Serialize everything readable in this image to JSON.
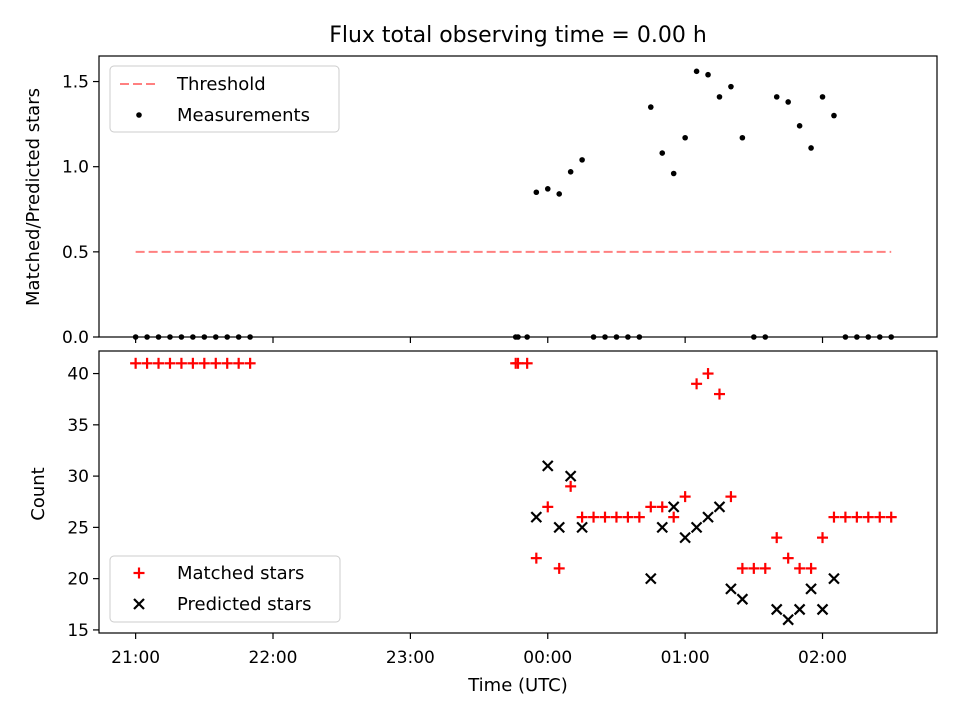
{
  "title": "Flux total observing time = 0.00 h",
  "xlabel": "Time (UTC)",
  "colors": {
    "threshold": "#ff8080",
    "measurements": "#000000",
    "matched": "#ff0000",
    "predicted": "#000000"
  },
  "chart_data": [
    {
      "type": "scatter",
      "ylabel": "Matched/Predicted stars",
      "xlim": [
        "20:44",
        "02:50"
      ],
      "ylim": [
        0,
        1.65
      ],
      "yticks": [
        0.0,
        0.5,
        1.0,
        1.5
      ],
      "ytick_labels": [
        "0.0",
        "0.5",
        "1.0",
        "1.5"
      ],
      "grid": false,
      "legend": {
        "placement": "top-left",
        "entries": [
          "Threshold",
          "Measurements"
        ]
      },
      "threshold": {
        "name": "Threshold",
        "value": 0.5,
        "x": [
          "21:00",
          "02:30"
        ],
        "style": "dashed"
      },
      "series": [
        {
          "name": "Measurements",
          "points": [
            [
              "21:00",
              0
            ],
            [
              "21:05",
              0
            ],
            [
              "21:10",
              0
            ],
            [
              "21:15",
              0
            ],
            [
              "21:20",
              0
            ],
            [
              "21:25",
              0
            ],
            [
              "21:30",
              0
            ],
            [
              "21:35",
              0
            ],
            [
              "21:40",
              0
            ],
            [
              "21:45",
              0
            ],
            [
              "21:50",
              0
            ],
            [
              "23:46",
              0
            ],
            [
              "23:47",
              0
            ],
            [
              "23:51",
              0
            ],
            [
              "23:55",
              0.85
            ],
            [
              "00:00",
              0.87
            ],
            [
              "00:05",
              0.84
            ],
            [
              "00:10",
              0.97
            ],
            [
              "00:15",
              1.04
            ],
            [
              "00:20",
              0
            ],
            [
              "00:25",
              0
            ],
            [
              "00:30",
              0
            ],
            [
              "00:35",
              0
            ],
            [
              "00:40",
              0
            ],
            [
              "00:45",
              1.35
            ],
            [
              "00:50",
              1.08
            ],
            [
              "00:55",
              0.96
            ],
            [
              "01:00",
              1.17
            ],
            [
              "01:05",
              1.56
            ],
            [
              "01:10",
              1.54
            ],
            [
              "01:15",
              1.41
            ],
            [
              "01:20",
              1.47
            ],
            [
              "01:25",
              1.17
            ],
            [
              "01:30",
              0
            ],
            [
              "01:35",
              0
            ],
            [
              "01:40",
              1.41
            ],
            [
              "01:45",
              1.38
            ],
            [
              "01:50",
              1.24
            ],
            [
              "01:55",
              1.11
            ],
            [
              "02:00",
              1.41
            ],
            [
              "02:05",
              1.3
            ],
            [
              "02:10",
              0
            ],
            [
              "02:15",
              0
            ],
            [
              "02:20",
              0
            ],
            [
              "02:25",
              0
            ],
            [
              "02:30",
              0
            ]
          ]
        }
      ]
    },
    {
      "type": "scatter",
      "ylabel": "Count",
      "xlim": [
        "20:44",
        "02:50"
      ],
      "ylim": [
        14.7,
        42.2
      ],
      "yticks": [
        15,
        20,
        25,
        30,
        35,
        40
      ],
      "ytick_labels": [
        "15",
        "20",
        "25",
        "30",
        "35",
        "40"
      ],
      "xticks": [
        "21:00",
        "22:00",
        "23:00",
        "00:00",
        "01:00",
        "02:00"
      ],
      "xtick_labels": [
        "21:00",
        "22:00",
        "23:00",
        "00:00",
        "01:00",
        "02:00"
      ],
      "grid": false,
      "legend": {
        "placement": "bottom-left",
        "entries": [
          "Matched stars",
          "Predicted stars"
        ]
      },
      "series": [
        {
          "name": "Matched stars",
          "marker": "+",
          "points": [
            [
              "21:00",
              41
            ],
            [
              "21:05",
              41
            ],
            [
              "21:10",
              41
            ],
            [
              "21:15",
              41
            ],
            [
              "21:20",
              41
            ],
            [
              "21:25",
              41
            ],
            [
              "21:30",
              41
            ],
            [
              "21:35",
              41
            ],
            [
              "21:40",
              41
            ],
            [
              "21:45",
              41
            ],
            [
              "21:50",
              41
            ],
            [
              "23:46",
              41
            ],
            [
              "23:47",
              41
            ],
            [
              "23:51",
              41
            ],
            [
              "23:55",
              22
            ],
            [
              "00:00",
              27
            ],
            [
              "00:05",
              21
            ],
            [
              "00:10",
              29
            ],
            [
              "00:15",
              26
            ],
            [
              "00:20",
              26
            ],
            [
              "00:25",
              26
            ],
            [
              "00:30",
              26
            ],
            [
              "00:35",
              26
            ],
            [
              "00:40",
              26
            ],
            [
              "00:45",
              27
            ],
            [
              "00:50",
              27
            ],
            [
              "00:55",
              26
            ],
            [
              "01:00",
              28
            ],
            [
              "01:05",
              39
            ],
            [
              "01:10",
              40
            ],
            [
              "01:15",
              38
            ],
            [
              "01:20",
              28
            ],
            [
              "01:25",
              21
            ],
            [
              "01:30",
              21
            ],
            [
              "01:35",
              21
            ],
            [
              "01:40",
              24
            ],
            [
              "01:45",
              22
            ],
            [
              "01:50",
              21
            ],
            [
              "01:55",
              21
            ],
            [
              "02:00",
              24
            ],
            [
              "02:05",
              26
            ],
            [
              "02:10",
              26
            ],
            [
              "02:15",
              26
            ],
            [
              "02:20",
              26
            ],
            [
              "02:25",
              26
            ],
            [
              "02:30",
              26
            ]
          ]
        },
        {
          "name": "Predicted stars",
          "marker": "x",
          "points": [
            [
              "23:55",
              26
            ],
            [
              "00:00",
              31
            ],
            [
              "00:05",
              25
            ],
            [
              "00:10",
              30
            ],
            [
              "00:15",
              25
            ],
            [
              "00:45",
              20
            ],
            [
              "00:50",
              25
            ],
            [
              "00:55",
              27
            ],
            [
              "01:00",
              24
            ],
            [
              "01:05",
              25
            ],
            [
              "01:10",
              26
            ],
            [
              "01:15",
              27
            ],
            [
              "01:20",
              19
            ],
            [
              "01:25",
              18
            ],
            [
              "01:40",
              17
            ],
            [
              "01:45",
              16
            ],
            [
              "01:50",
              17
            ],
            [
              "01:55",
              19
            ],
            [
              "02:00",
              17
            ],
            [
              "02:05",
              20
            ]
          ]
        }
      ]
    }
  ]
}
